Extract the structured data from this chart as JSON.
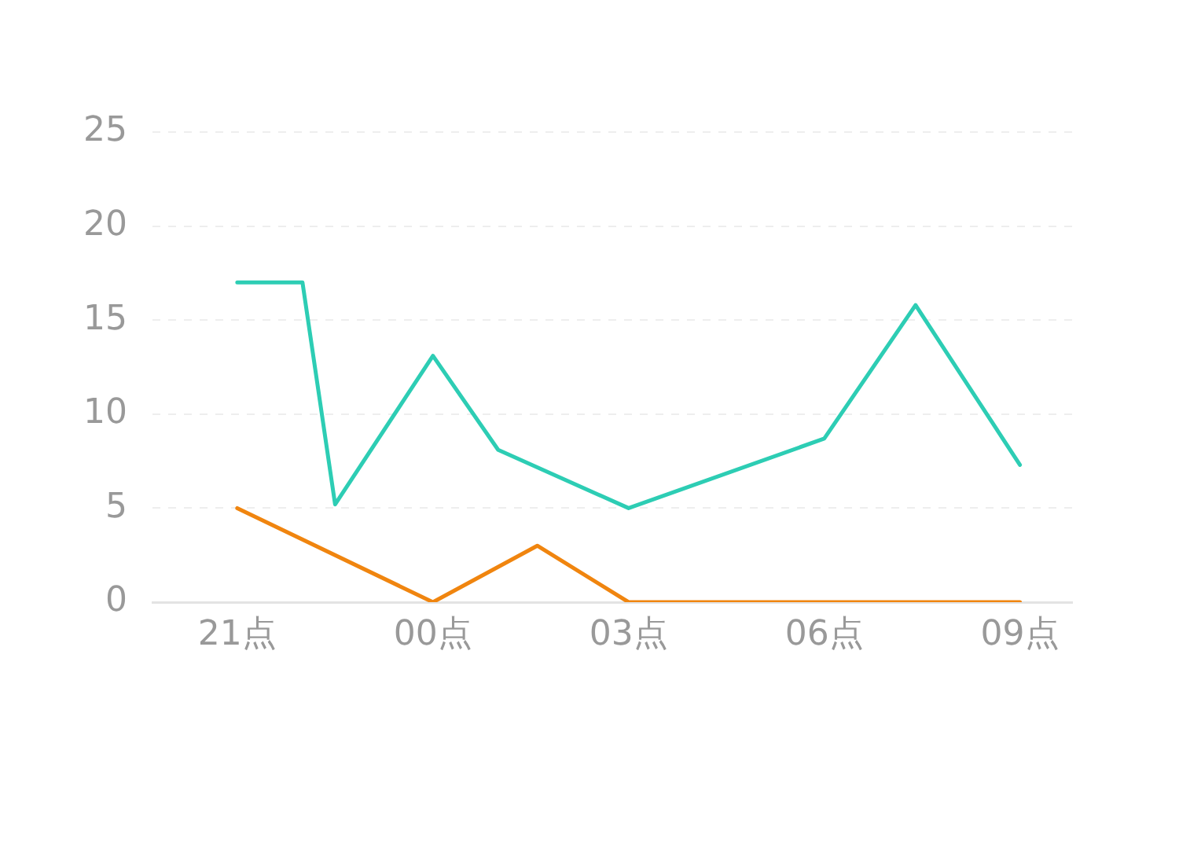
{
  "chart_data": {
    "type": "line",
    "series": [
      {
        "color": "#2dcdb4",
        "x": [
          "--01-01T21:00",
          "--01-01T22:00",
          "--01-01T22:30",
          "--01-02T00:00",
          "--01-02T01:00",
          "--01-02T03:00",
          "--01-02T06:00",
          "--01-02T07:24",
          "--01-02T09:00"
        ],
        "values": [
          17,
          17,
          5.2,
          13.1,
          8.1,
          5,
          8.7,
          15.8,
          7.3
        ]
      },
      {
        "color": "#f0850f",
        "x": [
          "--01-01T21:00",
          "--01-02T00:00",
          "--01-02T01:36",
          "--01-02T03:00",
          "--01-02T09:00"
        ],
        "values": [
          5,
          0,
          3,
          0,
          0
        ]
      }
    ],
    "xlim": [
      "--01-01T19:42",
      "--01-02T09:48"
    ],
    "xticks": [
      {
        "value": "--01-01T21:00",
        "label": "21点"
      },
      {
        "value": "--01-02T00:00",
        "label": "00点"
      },
      {
        "value": "--01-02T03:00",
        "label": "03点"
      },
      {
        "value": "--01-02T06:00",
        "label": "06点"
      },
      {
        "value": "--01-02T09:00",
        "label": "09点"
      }
    ],
    "ylim": [
      0,
      25
    ],
    "yticks": [
      0,
      5,
      10,
      15,
      20,
      25
    ],
    "grid": "y",
    "legend": false,
    "marker": "none",
    "line_style": "solid"
  }
}
